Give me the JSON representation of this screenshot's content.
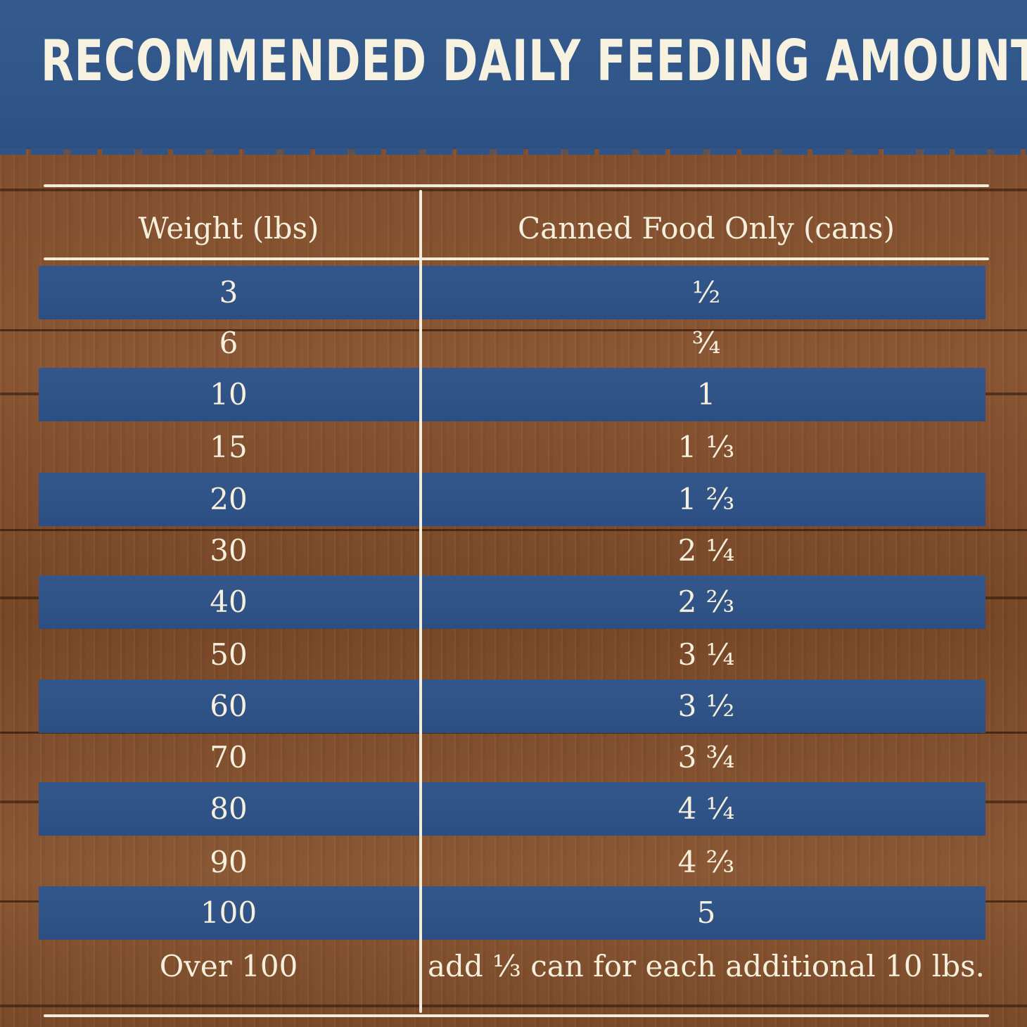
{
  "title": "RECOMMENDED DAILY FEEDING AMOUNTS:",
  "table": {
    "headers": {
      "weight": "Weight (lbs)",
      "cans": "Canned Food Only (cans)"
    },
    "rows": [
      {
        "weight": "3",
        "cans": "½"
      },
      {
        "weight": "6",
        "cans": "¾"
      },
      {
        "weight": "10",
        "cans": "1"
      },
      {
        "weight": "15",
        "cans": "1 ⅓"
      },
      {
        "weight": "20",
        "cans": "1 ⅔"
      },
      {
        "weight": "30",
        "cans": "2 ¼"
      },
      {
        "weight": "40",
        "cans": "2 ⅔"
      },
      {
        "weight": "50",
        "cans": "3 ¼"
      },
      {
        "weight": "60",
        "cans": "3 ½"
      },
      {
        "weight": "70",
        "cans": "3 ¾"
      },
      {
        "weight": "80",
        "cans": "4 ¼"
      },
      {
        "weight": "90",
        "cans": "4 ⅔"
      },
      {
        "weight": "100",
        "cans": "5"
      },
      {
        "weight": "Over 100",
        "cans": "add ⅓ can for each additional 10 lbs."
      }
    ]
  },
  "colors": {
    "blue": "#2f5488",
    "wood": "#7a4a2a",
    "cream": "#f5efdc"
  }
}
